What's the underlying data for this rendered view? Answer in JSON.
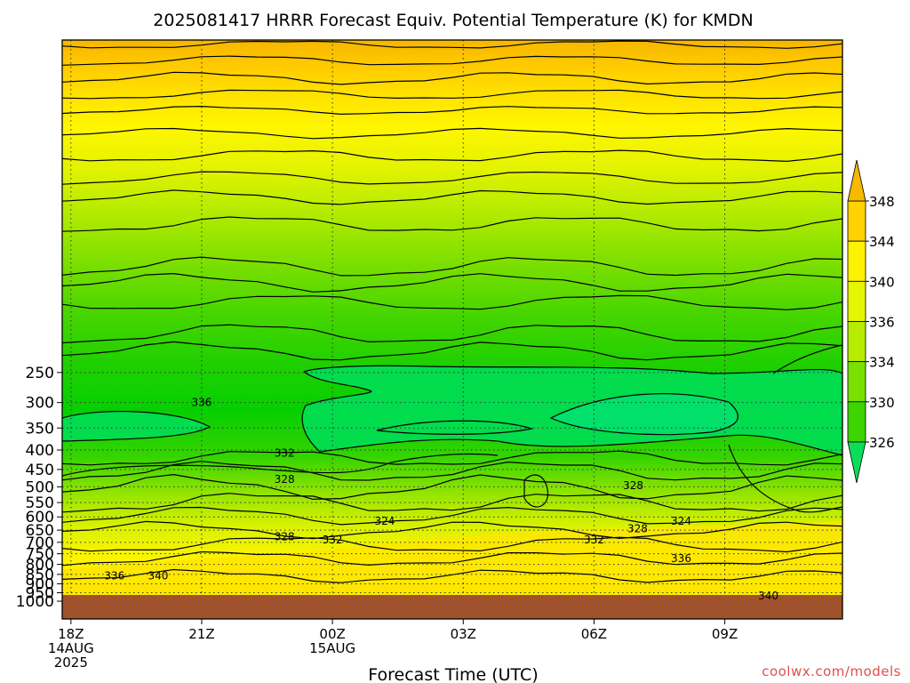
{
  "chart_data": {
    "type": "heatmap",
    "title": "2025081417 HRRR Forecast Equiv. Potential Temperature (K) for KMDN",
    "xlabel": "Forecast Time (UTC)",
    "ylabel": "",
    "y_axis": {
      "ticks": [
        250,
        300,
        350,
        400,
        450,
        500,
        550,
        600,
        650,
        700,
        750,
        800,
        850,
        900,
        950,
        1000
      ],
      "scale": "log-pressure",
      "inverted": true
    },
    "x_axis": {
      "ticks": [
        {
          "line1": "18Z",
          "line2": "14AUG",
          "line3": "2025"
        },
        {
          "line1": "21Z",
          "line2": "",
          "line3": ""
        },
        {
          "line1": "00Z",
          "line2": "15AUG",
          "line3": ""
        },
        {
          "line1": "03Z",
          "line2": "",
          "line3": ""
        },
        {
          "line1": "06Z",
          "line2": "",
          "line3": ""
        },
        {
          "line1": "09Z",
          "line2": "",
          "line3": ""
        }
      ]
    },
    "colorbar": {
      "labels": [
        348,
        344,
        340,
        336,
        334,
        330,
        326
      ],
      "colors": [
        "#f6b800",
        "#ffd200",
        "#fff200",
        "#e6f500",
        "#b5ec00",
        "#79e000",
        "#3ed400",
        "#0bdd58"
      ],
      "extend": "both"
    },
    "contour_labels": [
      {
        "value": "336",
        "t": 3.0,
        "p": 300
      },
      {
        "value": "332",
        "t": 4.9,
        "p": 408
      },
      {
        "value": "328",
        "t": 4.9,
        "p": 478
      },
      {
        "value": "328",
        "t": 12.9,
        "p": 496
      },
      {
        "value": "324",
        "t": 7.2,
        "p": 616
      },
      {
        "value": "324",
        "t": 14.0,
        "p": 616
      },
      {
        "value": "328",
        "t": 13.0,
        "p": 644
      },
      {
        "value": "328",
        "t": 4.9,
        "p": 676
      },
      {
        "value": "332",
        "t": 6.0,
        "p": 690
      },
      {
        "value": "332",
        "t": 12.0,
        "p": 690
      },
      {
        "value": "336",
        "t": 14.0,
        "p": 773
      },
      {
        "value": "336",
        "t": 1.0,
        "p": 858
      },
      {
        "value": "340",
        "t": 2.0,
        "p": 858
      },
      {
        "value": "340",
        "t": 16.0,
        "p": 967
      }
    ],
    "ground_color": "#a0522d"
  },
  "credit": "coolwx.com/models"
}
